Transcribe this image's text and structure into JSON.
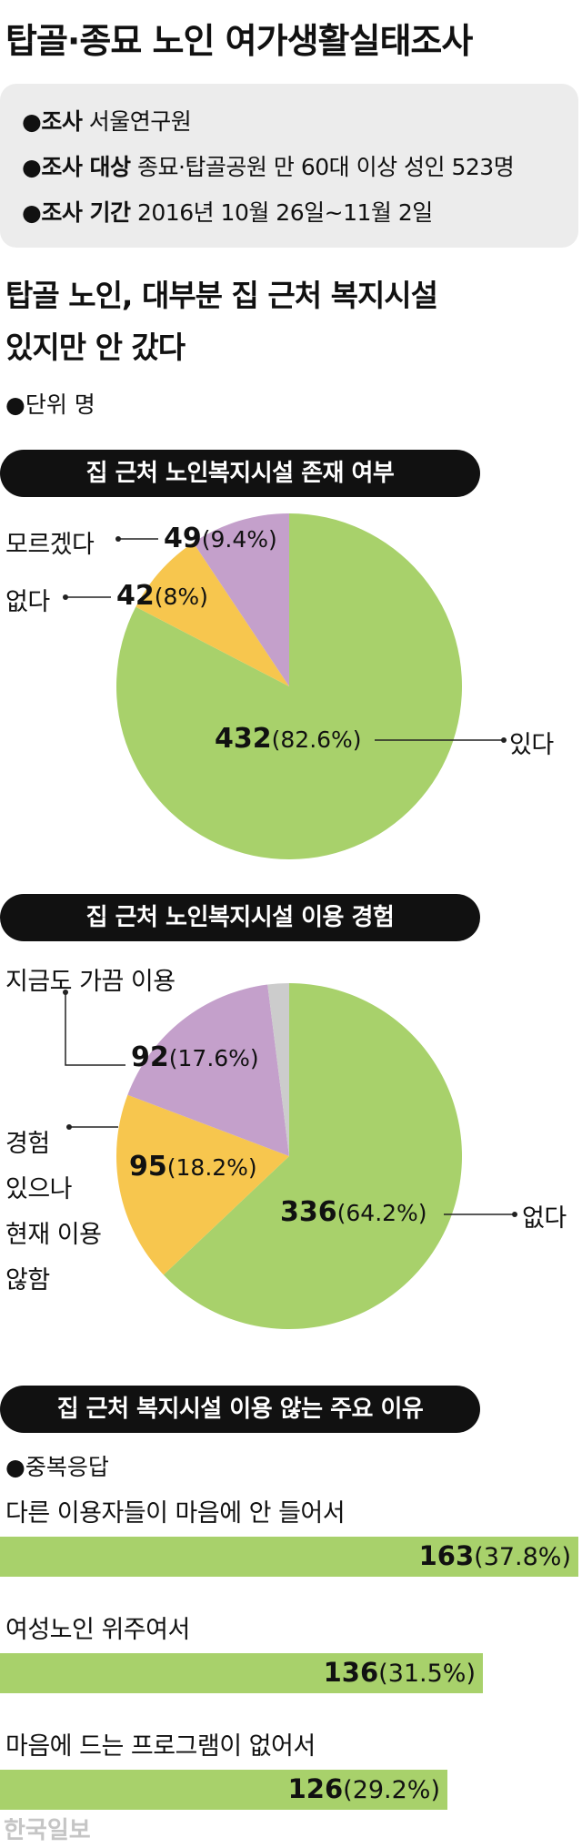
{
  "title": "탑골·종묘 노인 여가생활실태조사",
  "info": {
    "l1_key": "●조사",
    "l1_val": " 서울연구원",
    "l2_key": "●조사 대상",
    "l2_val": " 종묘·탑골공원 만 60대 이상 성인 523명",
    "l3_key": "●조사 기간",
    "l3_val": " 2016년 10월 26일~11월 2일"
  },
  "headline": {
    "line1": "탑골 노인, 대부분 집 근처 복지시설",
    "line2": "있지만 안 갔다"
  },
  "unit": "●단위 명",
  "colors": {
    "green": "#a8d16b",
    "yellow": "#f7c64e",
    "purple": "#c4a0cb",
    "gray": "#cccccc",
    "title_bg": "#111111"
  },
  "chart_data": [
    {
      "type": "pie",
      "title": "집 근처 노인복지시설 존재 여부",
      "slices": [
        {
          "label": "있다",
          "value": 432,
          "percent": "82.6%",
          "color": "#a8d16b"
        },
        {
          "label": "없다",
          "value": 42,
          "percent": "8%",
          "color": "#f7c64e"
        },
        {
          "label": "모르겠다",
          "value": 49,
          "percent": "9.4%",
          "color": "#c4a0cb"
        }
      ]
    },
    {
      "type": "pie",
      "title": "집 근처 노인복지시설 이용 경험",
      "slices": [
        {
          "label": "없다",
          "value": 336,
          "percent": "64.2%",
          "color": "#a8d16b"
        },
        {
          "label": "경험 있으나 현재 이용 않함",
          "value": 95,
          "percent": "18.2%",
          "color": "#f7c64e"
        },
        {
          "label": "지금도 가끔 이용",
          "value": 92,
          "percent": "17.6%",
          "color": "#c4a0cb"
        },
        {
          "label": "",
          "value": 0,
          "percent": "",
          "color": "#cccccc",
          "share": 0.02
        }
      ]
    },
    {
      "type": "bar",
      "title": "집 근처 복지시설 이용 않는 주요 이유",
      "note": "●중복응답",
      "categories": [
        "다른 이용자들이 마음에 안 들어서",
        "여성노인 위주여서",
        "마음에 드는 프로그램이 없어서"
      ],
      "values": [
        163,
        136,
        126
      ],
      "percents": [
        "37.8%",
        "31.5%",
        "29.2%"
      ]
    }
  ],
  "labels": {
    "c1_l1_num": "432",
    "c1_l1_pct": "(82.6%)",
    "c1_l1_side": "있다",
    "c1_l2_num": "42",
    "c1_l2_pct": "(8%)",
    "c1_l2_side": "없다",
    "c1_l3_num": "49",
    "c1_l3_pct": "(9.4%)",
    "c1_l3_side": "모르겠다",
    "c2_l1_num": "336",
    "c2_l1_pct": "(64.2%)",
    "c2_l1_side": "없다",
    "c2_l2_num": "95",
    "c2_l2_pct": "(18.2%)",
    "c2_l2_side1": "경험",
    "c2_l2_side2": "있으나",
    "c2_l2_side3": "현재 이용",
    "c2_l2_side4": "않함",
    "c2_l3_num": "92",
    "c2_l3_pct": "(17.6%)",
    "c2_l3_side": "지금도 가끔 이용",
    "r1_num": "163",
    "r1_pct": "(37.8%)",
    "r2_num": "136",
    "r2_pct": "(31.5%)",
    "r3_num": "126",
    "r3_pct": "(29.2%)"
  },
  "watermark": "한국일보"
}
